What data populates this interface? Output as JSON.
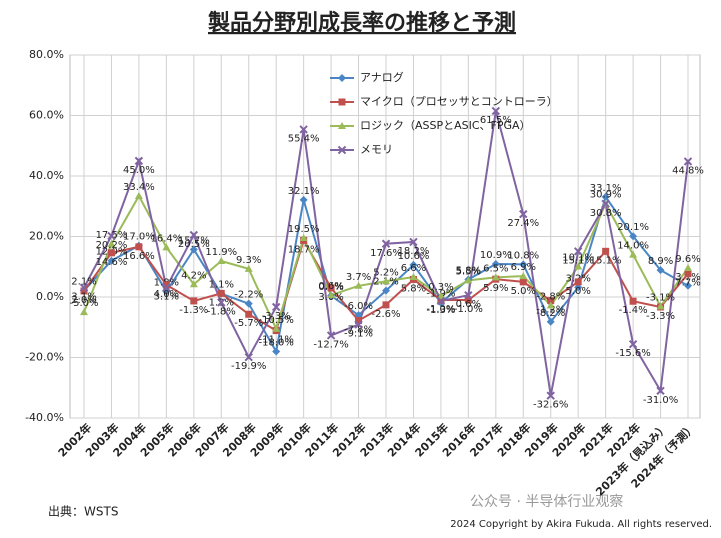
{
  "chart_data": {
    "type": "line",
    "title": "製品分野別成長率の推移と予測",
    "categories": [
      "2002年",
      "2003年",
      "2004年",
      "2005年",
      "2006年",
      "2007年",
      "2008年",
      "2009年",
      "2010年",
      "2011年",
      "2012年",
      "2013年",
      "2014年",
      "2015年",
      "2016年",
      "2017年",
      "2018年",
      "2019年",
      "2020年",
      "2021年",
      "2022年",
      "2023年（見込み）",
      "2024年（予測）"
    ],
    "ylim": [
      -40,
      80
    ],
    "yticks": [
      {
        "value": -40,
        "label": "-40.0%"
      },
      {
        "value": -20,
        "label": "-20.0%"
      },
      {
        "value": 0,
        "label": "0.0%"
      },
      {
        "value": 20,
        "label": "20.0%"
      },
      {
        "value": 40,
        "label": "40.0%"
      },
      {
        "value": 60,
        "label": "60.0%"
      },
      {
        "value": 80,
        "label": "80.0%"
      }
    ],
    "grid": true,
    "series": [
      {
        "name": "アナログ",
        "color": "#4a86c5",
        "marker": "diamond",
        "values": [
          2.1,
          12.0,
          17.0,
          1.8,
          15.7,
          1.1,
          -2.2,
          -18.0,
          32.1,
          0.4,
          -6.0,
          2.1,
          10.6,
          -1.9,
          5.8,
          10.9,
          10.8,
          -8.2,
          3.2,
          33.1,
          20.1,
          8.9,
          3.7
        ],
        "value_labels": [
          "2.1%",
          "12.0%",
          "17.0%",
          "1.8%",
          "15.7%",
          "1.1%",
          "-2.2%",
          "-18.0%",
          "32.1%",
          "0.4%",
          "-6.0%",
          "2.1%",
          "10.6%",
          "-1.9%",
          "5.8%",
          "10.9%",
          "10.8%",
          "-8.2%",
          "3.2%",
          "33.1%",
          "20.1%",
          "8.9%",
          "3.7%"
        ]
      },
      {
        "name": "マイクロ（プロセッサとコントローラ）",
        "color": "#c0504d",
        "marker": "square",
        "values": [
          2.0,
          14.6,
          16.6,
          4.0,
          -1.3,
          1.2,
          -5.7,
          -11.1,
          18.7,
          3.0,
          -7.8,
          -2.6,
          5.8,
          -1.0,
          -1.0,
          5.9,
          5.0,
          -1.2,
          5.0,
          15.1,
          -1.4,
          -3.3,
          7.7
        ],
        "value_labels": [
          "2.0%",
          "14.6%",
          "16.6%",
          "4.0%",
          "-1.3%",
          "1.2%",
          "-5.7%",
          "-11.1%",
          "18.7%",
          "3.0%",
          "-7.8%",
          "-2.6%",
          "5.8%",
          "-1.0%",
          "-1.0%",
          "5.9%",
          "5.0%",
          "-1.2%",
          "5.0%",
          "15.1%",
          "-1.4%",
          "-3.3%",
          "7.7%"
        ]
      },
      {
        "name": "ロジック（ASSPとASIC、FPGA）",
        "color": "#9bbb59",
        "marker": "triangle",
        "values": [
          -5.0,
          17.5,
          33.4,
          16.4,
          4.2,
          11.9,
          9.3,
          -10.5,
          19.5,
          0.6,
          3.7,
          5.2,
          6.6,
          0.3,
          5.5,
          6.5,
          6.9,
          -2.8,
          10.1,
          30.9,
          14.0,
          -3.1,
          9.6
        ],
        "value_labels": [
          "-5.0%",
          "17.5%",
          "33.4%",
          "16.4%",
          "4.2%",
          "11.9%",
          "9.3%",
          "-10.5%",
          "19.5%",
          "0.6%",
          "3.7%",
          "5.2%",
          "6.6%",
          "0.3%",
          "5.5%",
          "6.5%",
          "6.9%",
          "-2.8%",
          "10.1%",
          "30.9%",
          "14.0%",
          "-3.1%",
          "9.6%"
        ]
      },
      {
        "name": "メモリ",
        "color": "#8064a2",
        "marker": "x",
        "values": [
          3.1,
          20.2,
          45.0,
          3.1,
          20.5,
          -1.8,
          -19.9,
          -3.3,
          55.4,
          -12.7,
          -9.1,
          17.6,
          18.2,
          -1.3,
          0.6,
          61.5,
          27.4,
          -32.6,
          15.1,
          30.8,
          -15.6,
          -31.0,
          44.8
        ],
        "value_labels": [
          "3.1%",
          "20.2%",
          "45.0%",
          "3.1%",
          "20.5%",
          "-1.8%",
          "-19.9%",
          "-3.3%",
          "55.4%",
          "-12.7%",
          "-9.1%",
          "17.6%",
          "18.2%",
          "-1.3%",
          "0.6%",
          "61.5%",
          "27.4%",
          "-32.6%",
          "15.1%",
          "30.8%",
          "-15.6%",
          "-31.0%",
          "44.8%"
        ]
      }
    ],
    "source": "出典：WSTS",
    "copyright": "2024 Copyright by Akira Fukuda. All rights reserved.",
    "watermark": "公众号 · 半导体行业观察"
  }
}
